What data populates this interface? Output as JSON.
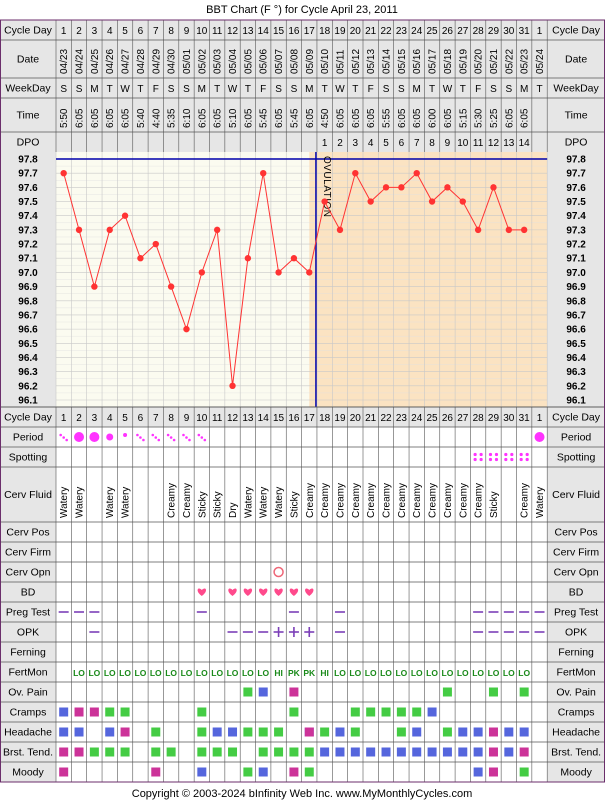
{
  "title": "BBT Chart (F °) for Cycle April 23, 2011",
  "copyright": "Copyright © 2003-2024 bInfinity Web Inc.    www.MyMonthlyCycles.com",
  "row_labels": {
    "cycle_day": "Cycle Day",
    "date": "Date",
    "weekday": "WeekDay",
    "time": "Time",
    "dpo": "DPO",
    "period": "Period",
    "spotting": "Spotting",
    "cerv_fluid": "Cerv Fluid",
    "cerv_pos": "Cerv Pos",
    "cerv_firm": "Cerv Firm",
    "cerv_opn": "Cerv Opn",
    "bd": "BD",
    "preg_test": "Preg Test",
    "opk": "OPK",
    "ferning": "Ferning",
    "fertmon": "FertMon",
    "ov_pain": "Ov. Pain",
    "cramps": "Cramps",
    "headache": "Headache",
    "brst_tend": "Brst. Tend.",
    "moody": "Moody"
  },
  "ovulation_label": "OVULATION",
  "colors": {
    "grid_border": "#6b2e6b",
    "header_bg": "#e6e6e6",
    "luteal_bg": "#fbe3c2",
    "follicular_bg": "#fbfbf0",
    "line": "#ff3333",
    "cover_line": "#0000aa",
    "period": "#ff33ff",
    "bd_heart": "#ff4a8c",
    "dash": "#7b3fb8",
    "fertmon": "#1a8a1a",
    "green": "#44cc44",
    "blue": "#5566dd",
    "magenta": "#cc3399"
  },
  "columns": [
    {
      "day": "1",
      "date": "04/23",
      "wd": "S",
      "time": "5:50",
      "dpo": ""
    },
    {
      "day": "2",
      "date": "04/24",
      "wd": "S",
      "time": "6:05",
      "dpo": ""
    },
    {
      "day": "3",
      "date": "04/25",
      "wd": "M",
      "time": "6:05",
      "dpo": ""
    },
    {
      "day": "4",
      "date": "04/26",
      "wd": "T",
      "time": "6:05",
      "dpo": ""
    },
    {
      "day": "5",
      "date": "04/27",
      "wd": "W",
      "time": "6:05",
      "dpo": ""
    },
    {
      "day": "6",
      "date": "04/28",
      "wd": "T",
      "time": "5:40",
      "dpo": ""
    },
    {
      "day": "7",
      "date": "04/29",
      "wd": "F",
      "time": "4:40",
      "dpo": ""
    },
    {
      "day": "8",
      "date": "04/30",
      "wd": "S",
      "time": "5:35",
      "dpo": ""
    },
    {
      "day": "9",
      "date": "05/01",
      "wd": "S",
      "time": "6:10",
      "dpo": ""
    },
    {
      "day": "10",
      "date": "05/02",
      "wd": "M",
      "time": "6:05",
      "dpo": ""
    },
    {
      "day": "11",
      "date": "05/03",
      "wd": "T",
      "time": "6:05",
      "dpo": ""
    },
    {
      "day": "12",
      "date": "05/04",
      "wd": "W",
      "time": "5:10",
      "dpo": ""
    },
    {
      "day": "13",
      "date": "05/05",
      "wd": "T",
      "time": "6:05",
      "dpo": ""
    },
    {
      "day": "14",
      "date": "05/06",
      "wd": "F",
      "time": "5:45",
      "dpo": ""
    },
    {
      "day": "15",
      "date": "05/07",
      "wd": "S",
      "time": "6:05",
      "dpo": ""
    },
    {
      "day": "16",
      "date": "05/08",
      "wd": "S",
      "time": "5:45",
      "dpo": ""
    },
    {
      "day": "17",
      "date": "05/09",
      "wd": "M",
      "time": "6:05",
      "dpo": ""
    },
    {
      "day": "18",
      "date": "05/10",
      "wd": "T",
      "time": "4:50",
      "dpo": "1"
    },
    {
      "day": "19",
      "date": "05/11",
      "wd": "W",
      "time": "6:05",
      "dpo": "2"
    },
    {
      "day": "20",
      "date": "05/12",
      "wd": "T",
      "time": "6:05",
      "dpo": "3"
    },
    {
      "day": "21",
      "date": "05/13",
      "wd": "F",
      "time": "6:05",
      "dpo": "4"
    },
    {
      "day": "22",
      "date": "05/14",
      "wd": "S",
      "time": "5:55",
      "dpo": "5"
    },
    {
      "day": "23",
      "date": "05/15",
      "wd": "S",
      "time": "6:05",
      "dpo": "6"
    },
    {
      "day": "24",
      "date": "05/16",
      "wd": "M",
      "time": "6:05",
      "dpo": "7"
    },
    {
      "day": "25",
      "date": "05/17",
      "wd": "T",
      "time": "6:00",
      "dpo": "8"
    },
    {
      "day": "26",
      "date": "05/18",
      "wd": "W",
      "time": "6:05",
      "dpo": "9"
    },
    {
      "day": "27",
      "date": "05/19",
      "wd": "T",
      "time": "5:15",
      "dpo": "10"
    },
    {
      "day": "28",
      "date": "05/20",
      "wd": "F",
      "time": "5:30",
      "dpo": "11"
    },
    {
      "day": "29",
      "date": "05/21",
      "wd": "S",
      "time": "5:25",
      "dpo": "12"
    },
    {
      "day": "30",
      "date": "05/22",
      "wd": "S",
      "time": "6:05",
      "dpo": "13"
    },
    {
      "day": "31",
      "date": "05/23",
      "wd": "M",
      "time": "6:05",
      "dpo": "14"
    },
    {
      "day": "1",
      "date": "05/24",
      "wd": "T",
      "time": "",
      "dpo": ""
    }
  ],
  "fluid": [
    "Watery",
    "Watery",
    "",
    "Watery",
    "Watery",
    "",
    "",
    "Creamy",
    "Creamy",
    "Sticky",
    "Sticky",
    "Dry",
    "Watery",
    "Watery",
    "Watery",
    "Sticky",
    "Creamy",
    "Creamy",
    "Creamy",
    "Creamy",
    "Creamy",
    "Creamy",
    "Creamy",
    "Creamy",
    "Creamy",
    "Creamy",
    "Creamy",
    "Creamy",
    "Sticky",
    "",
    "Creamy",
    "Watery"
  ],
  "fertmon": [
    "",
    "LO",
    "LO",
    "LO",
    "LO",
    "LO",
    "LO",
    "LO",
    "LO",
    "LO",
    "LO",
    "LO",
    "LO",
    "LO",
    "HI",
    "PK",
    "PK",
    "HI",
    "LO",
    "LO",
    "LO",
    "LO",
    "LO",
    "LO",
    "LO",
    "LO",
    "LO",
    "LO",
    "LO",
    "LO",
    "LO",
    ""
  ],
  "symbols": {
    "period": [
      "light",
      "heavy",
      "heavy",
      "medium",
      "small",
      "light",
      "light",
      "light",
      "light",
      "light",
      "",
      "",
      "",
      "",
      "",
      "",
      "",
      "",
      "",
      "",
      "",
      "",
      "",
      "",
      "",
      "",
      "",
      "",
      "",
      "",
      "",
      "heavy"
    ],
    "spotting": [
      28,
      29,
      30,
      31
    ],
    "bd": [
      10,
      12,
      13,
      14,
      15,
      16,
      17
    ],
    "cerv_opn": [
      15
    ],
    "preg_test": [
      1,
      2,
      3,
      10,
      16,
      19,
      28,
      29,
      30,
      31,
      32
    ],
    "opk_dash": [
      3,
      12,
      13,
      14,
      19,
      28,
      29,
      30,
      31,
      32
    ],
    "opk_plus": [
      15,
      16,
      17
    ],
    "ov_pain": {
      "green": [
        13,
        26,
        29,
        31
      ],
      "blue": [
        14
      ],
      "magenta": [
        16
      ]
    },
    "cramps": {
      "blue": [
        1
      ],
      "magenta": [
        2,
        3
      ],
      "green": [
        4,
        5,
        10,
        16,
        20,
        21,
        22,
        23,
        24
      ],
      "blue2": [
        25
      ]
    },
    "headache": {
      "blue": [
        1,
        2,
        4,
        11,
        12,
        17,
        19,
        24,
        27,
        28,
        30,
        31
      ],
      "magenta": [
        5,
        17,
        29
      ],
      "green": [
        7,
        10,
        13,
        14,
        15,
        18,
        20,
        23,
        26
      ]
    },
    "brst_tend": {
      "magenta": [
        1,
        2,
        29,
        31
      ],
      "green": [
        3,
        4,
        5,
        7,
        10,
        11,
        12,
        14,
        15,
        16,
        17
      ],
      "blue": [
        18,
        19,
        20,
        21,
        22,
        23,
        24,
        25,
        26,
        27,
        28,
        30
      ],
      "green2": [
        8
      ]
    },
    "moody": {
      "magenta": [
        1,
        7,
        16,
        29
      ],
      "blue": [
        10,
        14,
        28
      ],
      "green": [
        13,
        17,
        31
      ]
    }
  },
  "chart_data": {
    "type": "line",
    "title": "BBT Chart (F °) for Cycle April 23, 2011",
    "x": [
      "04/23",
      "04/24",
      "04/25",
      "04/26",
      "04/27",
      "04/28",
      "04/29",
      "04/30",
      "05/01",
      "05/02",
      "05/03",
      "05/04",
      "05/05",
      "05/06",
      "05/07",
      "05/08",
      "05/09",
      "05/10",
      "05/11",
      "05/12",
      "05/13",
      "05/14",
      "05/15",
      "05/16",
      "05/17",
      "05/18",
      "05/19",
      "05/20",
      "05/21",
      "05/22",
      "05/23"
    ],
    "series": [
      {
        "name": "",
        "values": [
          97.7,
          97.3,
          96.9,
          97.3,
          97.4,
          97.1,
          97.2,
          96.9,
          96.6,
          97.0,
          97.3,
          96.2,
          97.1,
          97.7,
          97.0,
          97.1,
          97.0,
          97.5,
          97.3,
          97.7,
          97.5,
          97.6,
          97.6,
          97.7,
          97.5,
          97.6,
          97.5,
          97.3,
          97.6,
          97.3,
          97.3
        ]
      }
    ],
    "yticks": [
      "97.8",
      "97.7",
      "97.6",
      "97.5",
      "97.4",
      "97.3",
      "97.2",
      "97.1",
      "97.0",
      "96.9",
      "96.8",
      "96.7",
      "96.6",
      "96.5",
      "96.4",
      "96.3",
      "96.2",
      "96.1"
    ],
    "ylim": [
      96.1,
      97.8
    ],
    "cover_line": 97.8,
    "ovulation_day": 17,
    "grid": true
  }
}
